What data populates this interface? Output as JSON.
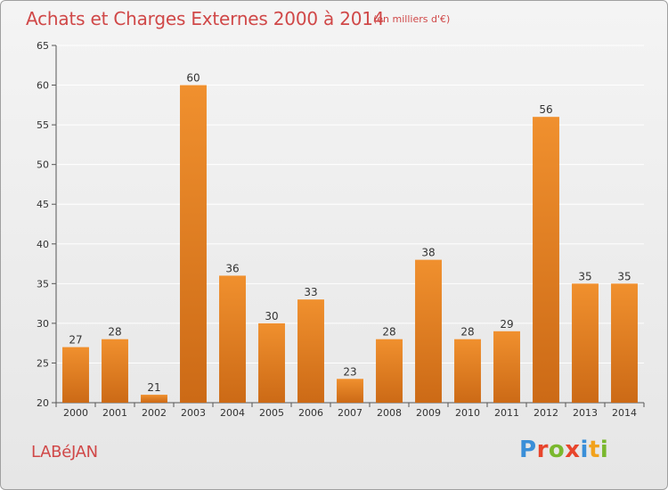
{
  "chart_data": {
    "type": "bar",
    "title": "Achats et Charges Externes 2000 à 2014",
    "subtitle": "(en milliers d'€)",
    "categories": [
      "2000",
      "2001",
      "2002",
      "2003",
      "2004",
      "2005",
      "2006",
      "2007",
      "2008",
      "2009",
      "2010",
      "2011",
      "2012",
      "2013",
      "2014"
    ],
    "values": [
      27,
      28,
      21,
      60,
      36,
      30,
      33,
      23,
      28,
      38,
      28,
      29,
      56,
      35,
      35
    ],
    "ylim": [
      20,
      65
    ],
    "yticks": [
      20,
      25,
      30,
      35,
      40,
      45,
      50,
      55,
      60,
      65
    ],
    "grid": true,
    "bar_color": "#f0902e",
    "bar_color_dark": "#cc6a16",
    "xlabel": "",
    "ylabel": ""
  },
  "footer": {
    "commune": "LABéJAN",
    "logo_letters": [
      "P",
      "r",
      "o",
      "x",
      "i",
      "t",
      "i"
    ],
    "logo_colors": [
      "#3a8fd8",
      "#e8452c",
      "#7ab82e",
      "#e8452c",
      "#3a8fd8",
      "#f2a21c",
      "#7ab82e"
    ]
  }
}
